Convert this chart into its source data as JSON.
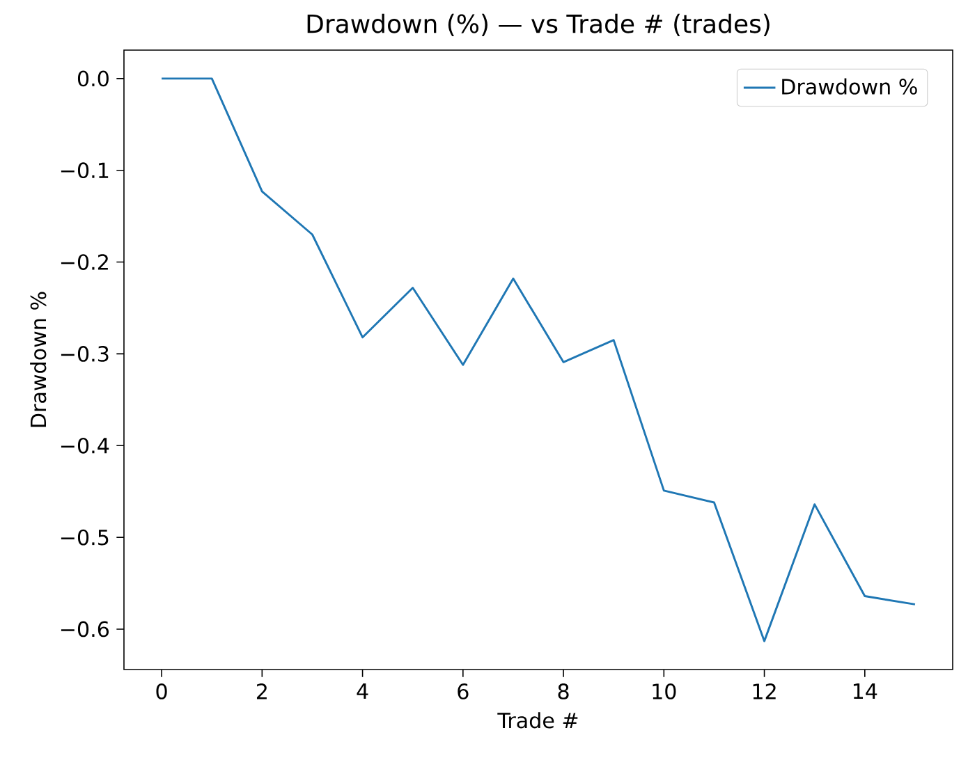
{
  "chart_data": {
    "type": "line",
    "title": "Drawdown (%) — vs Trade # (trades)",
    "xlabel": "Trade #",
    "ylabel": "Drawdown %",
    "x": [
      0,
      1,
      2,
      3,
      4,
      5,
      6,
      7,
      8,
      9,
      10,
      11,
      12,
      13,
      14,
      15
    ],
    "series": [
      {
        "name": "Drawdown %",
        "color": "#1f77b4",
        "values": [
          0,
          0,
          -0.123,
          -0.17,
          -0.282,
          -0.228,
          -0.312,
          -0.218,
          -0.309,
          -0.285,
          -0.449,
          -0.462,
          -0.613,
          -0.464,
          -0.564,
          -0.573
        ]
      }
    ],
    "xlim": [
      -0.75,
      15.75
    ],
    "ylim": [
      -0.644,
      0.031
    ],
    "xticks": [
      0,
      2,
      4,
      6,
      8,
      10,
      12,
      14
    ],
    "yticks": [
      {
        "value": 0.0,
        "label": "0.0"
      },
      {
        "value": -0.1,
        "label": "−0.1"
      },
      {
        "value": -0.2,
        "label": "−0.2"
      },
      {
        "value": -0.3,
        "label": "−0.3"
      },
      {
        "value": -0.4,
        "label": "−0.4"
      },
      {
        "value": -0.5,
        "label": "−0.5"
      },
      {
        "value": -0.6,
        "label": "−0.6"
      }
    ],
    "legend": "top right",
    "grid": false,
    "marker": "none",
    "line_style": "solid"
  }
}
